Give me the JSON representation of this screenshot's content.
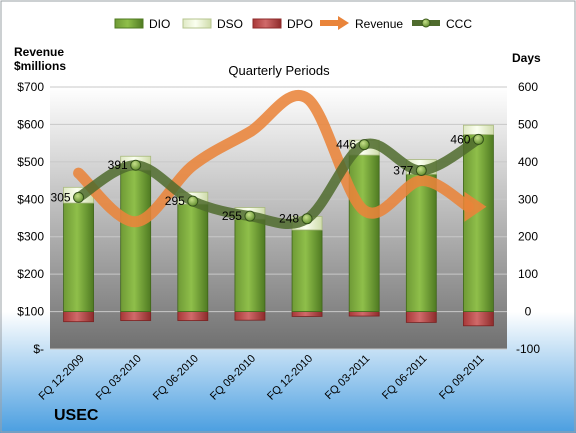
{
  "chart_data": {
    "type": "bar",
    "title": "Quarterly Periods",
    "company": "USEC",
    "left_axis_label_line1": "Revenue",
    "left_axis_label_line2": "$millions",
    "right_axis_label": "Days",
    "left_ylim": [
      0,
      700
    ],
    "left_ticks": [
      "$-",
      "$100",
      "$200",
      "$300",
      "$400",
      "$500",
      "$600",
      "$700"
    ],
    "right_ylim": [
      -100,
      600
    ],
    "right_ticks": [
      "-100",
      "0",
      "100",
      "200",
      "300",
      "400",
      "500",
      "600"
    ],
    "categories": [
      "FQ 12-2009",
      "FQ 03-2010",
      "FQ 06-2010",
      "FQ 09-2010",
      "FQ 12-2010",
      "FQ 03-2011",
      "FQ 06-2011",
      "FQ 09-2011"
    ],
    "legend": [
      "DIO",
      "DSO",
      "DPO",
      "Revenue",
      "CCC"
    ],
    "series": [
      {
        "name": "DIO",
        "axis": "right",
        "values": [
          290,
          378,
          287,
          247,
          218,
          418,
          367,
          473
        ]
      },
      {
        "name": "DSO",
        "axis": "right",
        "values": [
          42,
          37,
          32,
          31,
          36,
          40,
          39,
          25
        ]
      },
      {
        "name": "DPO",
        "axis": "right",
        "values": [
          -27,
          -24,
          -24,
          -23,
          -13,
          -12,
          -29,
          -38
        ]
      },
      {
        "name": "Revenue",
        "axis": "left",
        "values": [
          470,
          340,
          490,
          580,
          670,
          370,
          450,
          380
        ]
      },
      {
        "name": "CCC",
        "axis": "right",
        "values": [
          305,
          391,
          295,
          255,
          248,
          446,
          377,
          460
        ]
      }
    ],
    "data_labels": [
      "305",
      "391",
      "295",
      "255",
      "248",
      "446",
      "377",
      "460"
    ],
    "colors": {
      "DIO": "#5f8a2a",
      "DSO": "#e6f0c8",
      "DPO": "#b94a4a",
      "Revenue": "#e9843a",
      "CCC": "#4f6b2d",
      "background_top": "#ffffff",
      "background_bottom": "#4a9ee0",
      "plot_top": "#ffffff",
      "plot_bottom": "#777777"
    },
    "legend_position": "top",
    "grid": true
  }
}
